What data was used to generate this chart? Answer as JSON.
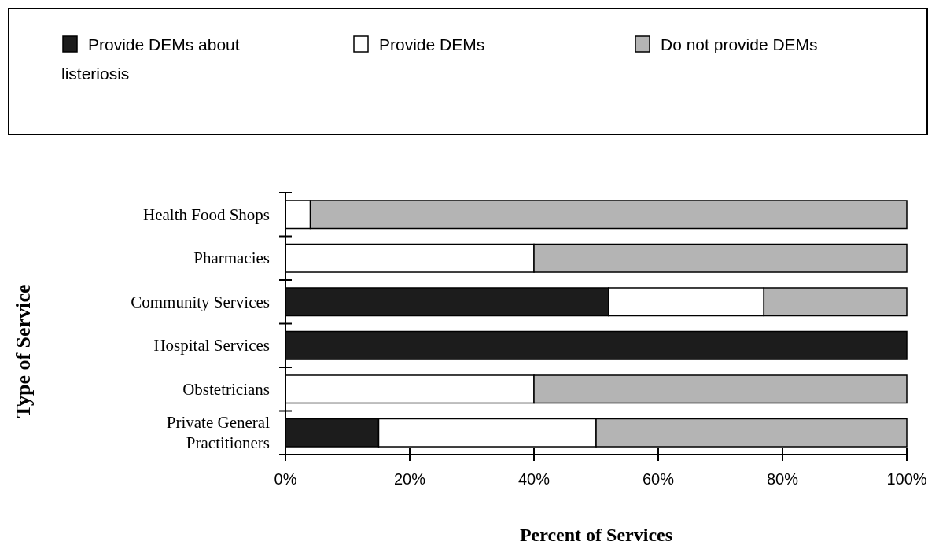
{
  "chart_data": {
    "type": "bar",
    "orientation": "horizontal",
    "stacked": true,
    "xlabel": "Percent of Services",
    "ylabel": "Type of Service",
    "categories": [
      "Health Food Shops",
      "Pharmacies",
      "Community Services",
      "Hospital Services",
      "Obstetricians",
      "Private General Practitioners"
    ],
    "series": [
      {
        "name": "Provide DEMs about listeriosis",
        "color": "#1c1c1c",
        "values": [
          0,
          0,
          52,
          100,
          0,
          15
        ]
      },
      {
        "name": "Provide DEMs",
        "color": "#ffffff",
        "values": [
          4,
          40,
          25,
          0,
          40,
          35
        ]
      },
      {
        "name": "Do not provide DEMs",
        "color": "#b4b4b4",
        "values": [
          96,
          60,
          23,
          0,
          60,
          50
        ]
      }
    ],
    "xlim": [
      0,
      100
    ],
    "xticks": [
      {
        "value": 0,
        "label": "0%"
      },
      {
        "value": 20,
        "label": "20%"
      },
      {
        "value": 40,
        "label": "40%"
      },
      {
        "value": 60,
        "label": "60%"
      },
      {
        "value": 80,
        "label": "80%"
      },
      {
        "value": 100,
        "label": "100%"
      }
    ],
    "legend": "top"
  }
}
